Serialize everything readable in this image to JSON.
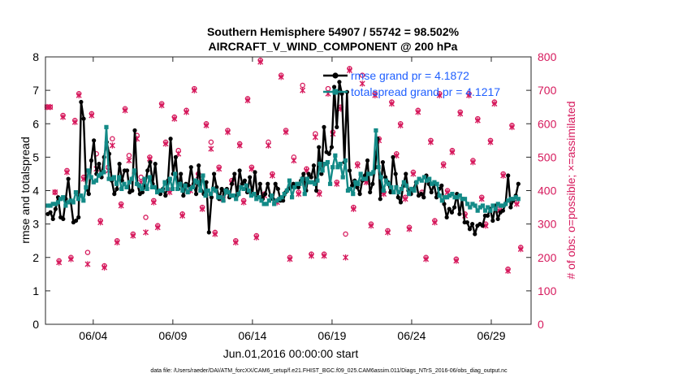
{
  "chart_data": {
    "type": "line",
    "title_line1": "Southern Hemisphere 54907 / 55742 = 98.502%",
    "title_line2": "AIRCRAFT_V_WIND_COMPONENT @ 200 hPa",
    "ylabel_left": "rmse and totalspread",
    "ylabel_right": "# of obs: o=possible; ×=assimilated",
    "xlabel": "Jun.01,2016 00:00:00 start",
    "footer": "data file: /Users/raeder/DAI/ATM_forcXX/CAM6_setup/f.e21.FHIST_BGC.f09_025.CAM6assim.011/Diags_NTrS_2016-06/obs_diag_output.nc",
    "xlim": [
      1,
      31.5
    ],
    "ylim_left": [
      0,
      8
    ],
    "ylim_right": [
      0,
      800
    ],
    "yticks_left": [
      "0",
      "1",
      "2",
      "3",
      "4",
      "5",
      "6",
      "7",
      "8"
    ],
    "yticks_right": [
      "0",
      "100",
      "200",
      "300",
      "400",
      "500",
      "600",
      "700",
      "800"
    ],
    "xticks": [
      {
        "day": 4,
        "label": "06/04"
      },
      {
        "day": 9,
        "label": "06/09"
      },
      {
        "day": 14,
        "label": "06/14"
      },
      {
        "day": 19,
        "label": "06/19"
      },
      {
        "day": 24,
        "label": "06/24"
      },
      {
        "day": 29,
        "label": "06/29"
      }
    ],
    "colors": {
      "rmse": "#000000",
      "spread": "#138a87",
      "obs": "#d6195c",
      "legend_text": "#1f5fff",
      "grid": "#dddddd"
    },
    "series": [
      {
        "name": "rmse grand pr = 4.1872",
        "key": "rmse",
        "values": [
          3.3,
          3.35,
          3.15,
          3.45,
          3.8,
          3.2,
          3.15,
          3.75,
          4.35,
          3.65,
          3.05,
          3.1,
          3.2,
          6.65,
          6.15,
          4.05,
          3.9,
          4.9,
          5.5,
          4.5,
          4.8,
          4.4,
          5.0,
          5.45,
          5.1,
          4.3,
          3.9,
          4.05,
          4.8,
          4.3,
          4.6,
          4.6,
          3.95,
          4.0,
          5.8,
          4.2,
          3.9,
          3.95,
          4.15,
          4.6,
          4.85,
          4.2,
          4.8,
          4.0,
          3.9,
          4.05,
          3.85,
          4.3,
          5.55,
          4.5,
          5.0,
          4.05,
          4.5,
          3.85,
          4.2,
          4.15,
          4.7,
          4.2,
          3.9,
          4.75,
          4.0,
          3.9,
          4.25,
          2.75,
          3.8,
          4.5,
          4.1,
          3.75,
          4.05,
          3.9,
          4.05,
          3.8,
          4.2,
          4.5,
          3.85,
          4.6,
          4.2,
          4.3,
          3.95,
          4.4,
          3.9,
          4.55,
          3.8,
          4.2,
          3.75,
          3.9,
          4.2,
          3.85,
          3.75,
          4.2,
          4.05,
          3.7,
          3.7,
          3.95,
          4.05,
          4.1,
          4.2,
          4.15,
          4.1,
          4.3,
          4.5,
          4.0,
          4.5,
          4.4,
          4.75,
          4.0,
          5.3,
          4.5,
          5.9,
          5.15,
          5.1,
          5.3,
          7.1,
          5.9,
          7.25,
          6.9,
          4.85,
          6.95,
          4.6,
          4.15,
          4.3,
          4.1,
          3.9,
          4.3,
          4.45,
          4.9,
          3.95,
          4.2,
          4.7,
          5.55,
          3.75,
          4.85,
          4.4,
          4.25,
          3.95,
          5.0,
          4.5,
          3.8,
          3.65,
          4.15,
          4.5,
          4.0,
          3.9,
          4.05,
          4.25,
          3.85,
          3.9,
          3.8,
          4.45,
          4.2,
          3.95,
          4.2,
          3.8,
          4.05,
          4.15,
          3.6,
          3.2,
          3.45,
          3.35,
          3.5,
          3.9,
          3.3,
          3.75,
          3.05,
          3.05,
          2.85,
          3.0,
          2.7,
          2.95,
          3.0,
          2.95,
          3.25,
          3.25,
          3.45,
          3.1,
          3.55,
          3.15,
          3.35,
          3.4,
          3.6,
          4.45,
          3.5,
          3.7,
          3.85,
          4.2
        ]
      },
      {
        "name": "totalspread grand pr = 4.1217",
        "key": "spread",
        "values": [
          3.55,
          3.55,
          3.6,
          3.6,
          3.65,
          3.75,
          3.8,
          3.55,
          3.65,
          3.7,
          3.65,
          3.95,
          3.75,
          3.85,
          3.7,
          4.1,
          4.6,
          4.4,
          4.25,
          4.3,
          4.45,
          4.5,
          4.55,
          5.9,
          4.35,
          4.35,
          4.4,
          4.2,
          4.4,
          4.05,
          4.2,
          4.1,
          4.25,
          4.35,
          4.6,
          4.2,
          4.15,
          4.05,
          4.35,
          4.05,
          4.4,
          4.1,
          4.1,
          3.95,
          4.0,
          4.0,
          4.25,
          4.05,
          4.35,
          4.05,
          4.5,
          4.05,
          4.2,
          4.0,
          4.15,
          3.95,
          4.05,
          4.1,
          4.3,
          4.25,
          4.0,
          4.45,
          3.85,
          4.0,
          3.9,
          4.05,
          4.0,
          3.8,
          3.8,
          3.7,
          4.0,
          3.95,
          3.85,
          3.85,
          3.75,
          3.9,
          4.1,
          4.05,
          4.15,
          4.0,
          3.85,
          3.9,
          3.75,
          3.8,
          3.7,
          3.6,
          3.6,
          3.7,
          3.85,
          3.6,
          3.7,
          3.75,
          3.8,
          3.9,
          4.0,
          4.3,
          3.8,
          4.1,
          4.2,
          4.2,
          4.35,
          3.9,
          4.35,
          4.25,
          4.25,
          4.2,
          4.3,
          4.8,
          4.6,
          4.8,
          4.85,
          4.2,
          4.7,
          5.05,
          4.7,
          4.8,
          4.4,
          4.9,
          4.0,
          4.05,
          3.9,
          4.25,
          4.2,
          4.5,
          4.35,
          4.35,
          4.5,
          4.5,
          4.55,
          5.8,
          4.7,
          4.4,
          4.0,
          4.3,
          4.2,
          4.1,
          3.95,
          4.1,
          3.95,
          4.05,
          4.25,
          4.15,
          3.9,
          4.05,
          4.0,
          4.25,
          4.35,
          4.3,
          4.4,
          4.3,
          4.35,
          4.2,
          4.25,
          4.2,
          3.85,
          3.7,
          3.8,
          3.8,
          3.85,
          3.9,
          3.8,
          3.8,
          3.85,
          3.75,
          3.75,
          3.6,
          3.5,
          3.6,
          3.55,
          3.4,
          3.5,
          3.55,
          3.4,
          3.5,
          3.4,
          3.55,
          3.45,
          3.6,
          3.55,
          3.55,
          3.6,
          3.7,
          3.75,
          3.75,
          3.8,
          3.75
        ]
      }
    ],
    "obs_possible": [
      [
        1.1,
        650
      ],
      [
        1.3,
        650
      ],
      [
        1.6,
        395
      ],
      [
        1.85,
        190
      ],
      [
        2.1,
        625
      ],
      [
        2.35,
        460
      ],
      [
        2.6,
        200
      ],
      [
        2.85,
        610
      ],
      [
        3.1,
        690
      ],
      [
        3.4,
        440
      ],
      [
        3.65,
        215
      ],
      [
        3.9,
        630
      ],
      [
        4.2,
        510
      ],
      [
        4.45,
        310
      ],
      [
        4.7,
        175
      ],
      [
        4.95,
        470
      ],
      [
        5.2,
        555
      ],
      [
        5.5,
        250
      ],
      [
        5.75,
        360
      ],
      [
        6.0,
        645
      ],
      [
        6.25,
        505
      ],
      [
        6.5,
        270
      ],
      [
        6.75,
        565
      ],
      [
        7.0,
        440
      ],
      [
        7.3,
        320
      ],
      [
        7.55,
        500
      ],
      [
        7.8,
        370
      ],
      [
        8.05,
        295
      ],
      [
        8.3,
        660
      ],
      [
        8.55,
        545
      ],
      [
        8.8,
        400
      ],
      [
        9.1,
        620
      ],
      [
        9.35,
        520
      ],
      [
        9.6,
        330
      ],
      [
        9.85,
        640
      ],
      [
        10.1,
        410
      ],
      [
        10.35,
        705
      ],
      [
        10.6,
        450
      ],
      [
        10.85,
        350
      ],
      [
        11.1,
        600
      ],
      [
        11.4,
        545
      ],
      [
        11.65,
        275
      ],
      [
        11.9,
        470
      ],
      [
        12.15,
        380
      ],
      [
        12.45,
        580
      ],
      [
        12.7,
        430
      ],
      [
        12.95,
        250
      ],
      [
        13.2,
        540
      ],
      [
        13.45,
        370
      ],
      [
        13.7,
        675
      ],
      [
        13.95,
        470
      ],
      [
        14.25,
        265
      ],
      [
        14.5,
        790
      ],
      [
        14.75,
        390
      ],
      [
        15.0,
        545
      ],
      [
        15.25,
        450
      ],
      [
        15.55,
        370
      ],
      [
        15.8,
        745
      ],
      [
        16.1,
        580
      ],
      [
        16.35,
        200
      ],
      [
        16.6,
        500
      ],
      [
        16.9,
        395
      ],
      [
        17.15,
        715
      ],
      [
        17.4,
        465
      ],
      [
        17.7,
        210
      ],
      [
        17.95,
        570
      ],
      [
        18.2,
        395
      ],
      [
        18.5,
        210
      ],
      [
        18.75,
        705
      ],
      [
        19.05,
        575
      ],
      [
        19.3,
        425
      ],
      [
        19.55,
        650
      ],
      [
        19.85,
        270
      ],
      [
        20.1,
        765
      ],
      [
        20.35,
        350
      ],
      [
        20.6,
        480
      ],
      [
        20.9,
        745
      ],
      [
        21.15,
        430
      ],
      [
        21.45,
        300
      ],
      [
        21.7,
        690
      ],
      [
        21.95,
        555
      ],
      [
        22.25,
        395
      ],
      [
        22.5,
        280
      ],
      [
        22.75,
        665
      ],
      [
        23.05,
        510
      ],
      [
        23.3,
        600
      ],
      [
        23.6,
        380
      ],
      [
        23.85,
        290
      ],
      [
        24.1,
        455
      ],
      [
        24.4,
        640
      ],
      [
        24.65,
        395
      ],
      [
        24.9,
        200
      ],
      [
        25.2,
        550
      ],
      [
        25.45,
        310
      ],
      [
        25.75,
        690
      ],
      [
        26.0,
        480
      ],
      [
        26.25,
        400
      ],
      [
        26.55,
        520
      ],
      [
        26.8,
        195
      ],
      [
        27.05,
        635
      ],
      [
        27.35,
        330
      ],
      [
        27.6,
        690
      ],
      [
        27.85,
        490
      ],
      [
        28.15,
        615
      ],
      [
        28.4,
        380
      ],
      [
        28.65,
        300
      ],
      [
        28.95,
        550
      ],
      [
        29.2,
        665
      ],
      [
        29.5,
        345
      ],
      [
        29.75,
        450
      ],
      [
        30.05,
        165
      ],
      [
        30.3,
        595
      ],
      [
        30.6,
        365
      ],
      [
        30.85,
        230
      ]
    ],
    "obs_assimilated": [
      [
        1.1,
        650
      ],
      [
        1.3,
        650
      ],
      [
        1.6,
        395
      ],
      [
        1.85,
        185
      ],
      [
        2.1,
        620
      ],
      [
        2.35,
        455
      ],
      [
        2.6,
        195
      ],
      [
        2.85,
        605
      ],
      [
        3.1,
        685
      ],
      [
        3.4,
        435
      ],
      [
        3.65,
        180
      ],
      [
        3.9,
        625
      ],
      [
        4.2,
        465
      ],
      [
        4.45,
        305
      ],
      [
        4.7,
        170
      ],
      [
        4.95,
        460
      ],
      [
        5.2,
        535
      ],
      [
        5.5,
        245
      ],
      [
        5.75,
        355
      ],
      [
        6.0,
        640
      ],
      [
        6.25,
        490
      ],
      [
        6.5,
        265
      ],
      [
        6.75,
        555
      ],
      [
        7.0,
        425
      ],
      [
        7.3,
        275
      ],
      [
        7.55,
        495
      ],
      [
        7.8,
        365
      ],
      [
        8.05,
        290
      ],
      [
        8.3,
        655
      ],
      [
        8.55,
        540
      ],
      [
        8.8,
        395
      ],
      [
        9.1,
        615
      ],
      [
        9.35,
        510
      ],
      [
        9.6,
        325
      ],
      [
        9.85,
        635
      ],
      [
        10.1,
        400
      ],
      [
        10.35,
        700
      ],
      [
        10.6,
        445
      ],
      [
        10.85,
        345
      ],
      [
        11.1,
        595
      ],
      [
        11.4,
        525
      ],
      [
        11.65,
        270
      ],
      [
        11.9,
        465
      ],
      [
        12.15,
        375
      ],
      [
        12.45,
        575
      ],
      [
        12.7,
        425
      ],
      [
        12.95,
        245
      ],
      [
        13.2,
        535
      ],
      [
        13.45,
        365
      ],
      [
        13.7,
        670
      ],
      [
        13.95,
        465
      ],
      [
        14.25,
        260
      ],
      [
        14.5,
        785
      ],
      [
        14.75,
        385
      ],
      [
        15.0,
        535
      ],
      [
        15.25,
        445
      ],
      [
        15.55,
        365
      ],
      [
        15.8,
        740
      ],
      [
        16.1,
        575
      ],
      [
        16.35,
        195
      ],
      [
        16.6,
        490
      ],
      [
        16.9,
        390
      ],
      [
        17.15,
        700
      ],
      [
        17.4,
        460
      ],
      [
        17.7,
        205
      ],
      [
        17.95,
        560
      ],
      [
        18.2,
        390
      ],
      [
        18.5,
        205
      ],
      [
        18.75,
        690
      ],
      [
        19.05,
        570
      ],
      [
        19.3,
        420
      ],
      [
        19.55,
        645
      ],
      [
        19.85,
        200
      ],
      [
        20.1,
        760
      ],
      [
        20.35,
        345
      ],
      [
        20.6,
        475
      ],
      [
        20.9,
        720
      ],
      [
        21.15,
        425
      ],
      [
        21.45,
        295
      ],
      [
        21.7,
        685
      ],
      [
        21.95,
        550
      ],
      [
        22.25,
        390
      ],
      [
        22.5,
        275
      ],
      [
        22.75,
        660
      ],
      [
        23.05,
        505
      ],
      [
        23.3,
        595
      ],
      [
        23.6,
        375
      ],
      [
        23.85,
        285
      ],
      [
        24.1,
        450
      ],
      [
        24.4,
        635
      ],
      [
        24.65,
        390
      ],
      [
        24.9,
        195
      ],
      [
        25.2,
        545
      ],
      [
        25.45,
        305
      ],
      [
        25.75,
        685
      ],
      [
        26.0,
        475
      ],
      [
        26.25,
        395
      ],
      [
        26.55,
        515
      ],
      [
        26.8,
        190
      ],
      [
        27.05,
        630
      ],
      [
        27.35,
        325
      ],
      [
        27.6,
        685
      ],
      [
        27.85,
        485
      ],
      [
        28.15,
        610
      ],
      [
        28.4,
        375
      ],
      [
        28.65,
        295
      ],
      [
        28.95,
        545
      ],
      [
        29.2,
        660
      ],
      [
        29.5,
        340
      ],
      [
        29.75,
        445
      ],
      [
        30.05,
        160
      ],
      [
        30.3,
        590
      ],
      [
        30.6,
        360
      ],
      [
        30.85,
        225
      ]
    ]
  }
}
